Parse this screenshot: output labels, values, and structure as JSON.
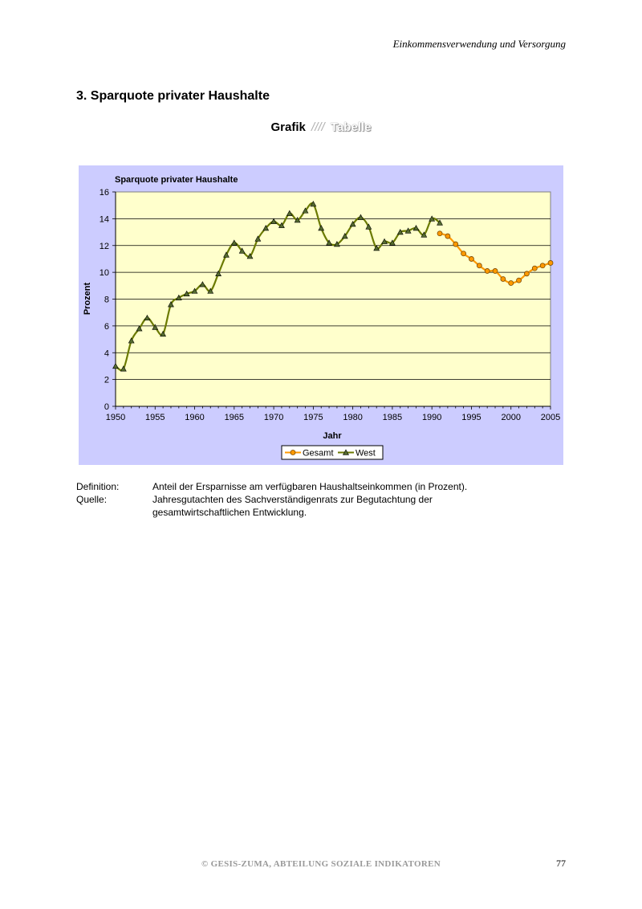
{
  "header": {
    "running_title": "Einkommensverwendung und Versorgung"
  },
  "section": {
    "title": "3. Sparquote privater Haushalte"
  },
  "tabs": {
    "grafik": "Grafik",
    "separator": "////",
    "tabelle": "Tabelle"
  },
  "colors": {
    "plot_bg": "#ffffcc",
    "chart_bg": "#ccccff",
    "west_line": "#6b7a00",
    "west_marker": "#556b2f",
    "gesamt_line": "#ff9900",
    "gesamt_marker": "#ff9900"
  },
  "chart_data": {
    "type": "line",
    "title": "Sparquote privater Haushalte",
    "xlabel": "Jahr",
    "ylabel": "Prozent",
    "xlim": [
      1950,
      2005
    ],
    "ylim": [
      0,
      16
    ],
    "xticks": [
      "1950",
      "1955",
      "1960",
      "1965",
      "1970",
      "1975",
      "1980",
      "1985",
      "1990",
      "1995",
      "2000",
      "2005"
    ],
    "yticks": [
      "0",
      "2",
      "4",
      "6",
      "8",
      "10",
      "12",
      "14",
      "16"
    ],
    "grid": "horizontal",
    "legend_position": "bottom",
    "legend": [
      "Gesamt",
      "West"
    ],
    "series": [
      {
        "name": "Gesamt",
        "marker": "circle",
        "x": [
          1991,
          1992,
          1993,
          1994,
          1995,
          1996,
          1997,
          1998,
          1999,
          2000,
          2001,
          2002,
          2003,
          2004,
          2005
        ],
        "y": [
          12.9,
          12.7,
          12.1,
          11.4,
          11.0,
          10.5,
          10.1,
          10.1,
          9.5,
          9.2,
          9.4,
          9.9,
          10.3,
          10.5,
          10.7
        ]
      },
      {
        "name": "West",
        "marker": "triangle",
        "x": [
          1950,
          1951,
          1952,
          1953,
          1954,
          1955,
          1956,
          1957,
          1958,
          1959,
          1960,
          1961,
          1962,
          1963,
          1964,
          1965,
          1966,
          1967,
          1968,
          1969,
          1970,
          1971,
          1972,
          1973,
          1974,
          1975,
          1976,
          1977,
          1978,
          1979,
          1980,
          1981,
          1982,
          1983,
          1984,
          1985,
          1986,
          1987,
          1988,
          1989,
          1990,
          1991
        ],
        "y": [
          3.0,
          2.8,
          4.9,
          5.8,
          6.6,
          5.9,
          5.4,
          7.6,
          8.1,
          8.4,
          8.6,
          9.1,
          8.6,
          9.9,
          11.3,
          12.2,
          11.6,
          11.2,
          12.5,
          13.3,
          13.8,
          13.5,
          14.4,
          13.9,
          14.6,
          15.1,
          13.3,
          12.2,
          12.1,
          12.7,
          13.6,
          14.1,
          13.4,
          11.8,
          12.3,
          12.2,
          13.0,
          13.1,
          13.3,
          12.8,
          14.0,
          13.7
        ]
      }
    ]
  },
  "definitions": [
    {
      "label": "Definition:",
      "text": "Anteil der Ersparnisse am verfügbaren Haushaltseinkommen (in Prozent)."
    },
    {
      "label": "Quelle:",
      "text": "Jahresgutachten des Sachverständigenrats zur Begutachtung der gesamtwirtschaftlichen Entwicklung."
    }
  ],
  "footer": {
    "copyright": "© GESIS-ZUMA, ABTEILUNG SOZIALE INDIKATOREN",
    "page_number": "77"
  }
}
